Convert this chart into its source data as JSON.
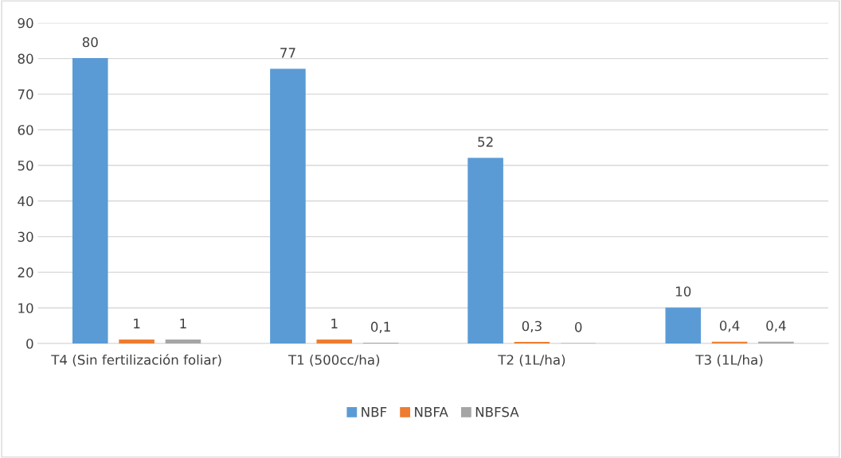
{
  "chart_data": {
    "type": "bar",
    "categories": [
      "T4 (Sin fertilización foliar)",
      "T1 (500cc/ha)",
      "T2 (1L/ha)",
      "T3 (1L/ha)"
    ],
    "series": [
      {
        "name": "NBF",
        "color": "#5b9bd5",
        "values": [
          80,
          77,
          52,
          10
        ],
        "value_labels": [
          "80",
          "77",
          "52",
          "10"
        ]
      },
      {
        "name": "NBFA",
        "color": "#ed7d31",
        "values": [
          1,
          1,
          0.3,
          0.4
        ],
        "value_labels": [
          "1",
          "1",
          "0,3",
          "0,4"
        ]
      },
      {
        "name": "NBFSA",
        "color": "#a5a5a5",
        "values": [
          1,
          0.1,
          0,
          0.4
        ],
        "value_labels": [
          "1",
          "0,1",
          "0",
          "0,4"
        ]
      }
    ],
    "ylim": [
      0,
      90
    ],
    "yticks": [
      0,
      10,
      20,
      30,
      40,
      50,
      60,
      70,
      80,
      90
    ],
    "grid": "y",
    "legend": "bottom"
  }
}
